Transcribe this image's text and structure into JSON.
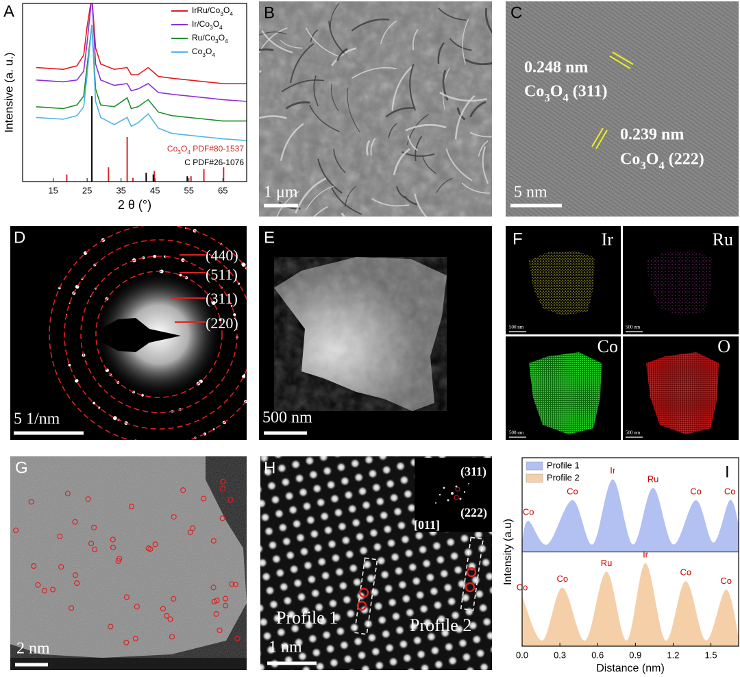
{
  "chart_data": [
    {
      "type": "line",
      "letter": "A",
      "xlabel": "2 θ (°)",
      "ylabel": "Intensive (a. u.)",
      "xlim": [
        6,
        72
      ],
      "ylim": [
        0,
        100
      ],
      "xticks": [
        15,
        25,
        35,
        45,
        55,
        65
      ],
      "legend": "upper right",
      "x": [
        10,
        18,
        22,
        24,
        25,
        26.4,
        27.5,
        29,
        33,
        36.8,
        38,
        40,
        43,
        46,
        50,
        55,
        60,
        65,
        72
      ],
      "series": [
        {
          "name": "IrRu/Co3O4",
          "color": "#e31a1c",
          "values": [
            64,
            63,
            65,
            71,
            87,
            104,
            75,
            66,
            63,
            64,
            60,
            60,
            64,
            59,
            58,
            57,
            56,
            55,
            55
          ]
        },
        {
          "name": "Ir/Co3O4",
          "color": "#8e2fd6",
          "values": [
            57,
            56,
            57,
            62,
            78,
            104,
            66,
            57,
            54,
            55,
            51,
            52,
            55,
            50,
            49,
            48,
            47,
            46,
            45
          ]
        },
        {
          "name": "Ru/Co3O4",
          "color": "#1e8f2a",
          "values": [
            42,
            41,
            43,
            48,
            65,
            88,
            52,
            43,
            42,
            47,
            41,
            42,
            46,
            39,
            37,
            36,
            35,
            34,
            34
          ]
        },
        {
          "name": "Co3O4",
          "color": "#4fb3e8",
          "values": [
            36,
            35,
            37,
            42,
            60,
            88,
            45,
            36,
            32,
            36,
            31,
            33,
            38,
            30,
            27,
            26,
            25,
            24,
            23
          ]
        }
      ],
      "references": [
        {
          "name": "Co3O4 PDF#80-1537",
          "color": "#d62728",
          "x": [
            19,
            31.3,
            36.8,
            38.5,
            44.8,
            55.6,
            59.4,
            65.2
          ],
          "values": [
            4,
            8,
            25,
            2,
            6,
            3,
            7,
            8
          ]
        },
        {
          "name": "C PDF#26-1076",
          "color": "#000000",
          "x": [
            26.4,
            42.4,
            44.5,
            54.5
          ],
          "values": [
            48,
            5,
            4,
            3
          ]
        }
      ]
    },
    {
      "type": "area",
      "letter": "I",
      "xlabel": "Distance (nm)",
      "ylabel": "Intensity (a.u)",
      "xlim": [
        0,
        1.72
      ],
      "ylim": [
        0,
        2
      ],
      "xticks": [
        {
          "value": 0,
          "label": "0.0"
        },
        0.3,
        0.6,
        0.9,
        1.2,
        1.5
      ],
      "legend": "upper left",
      "label_color": "#cc0000",
      "series": [
        {
          "name": "Profile 1",
          "color": "#b3c0f2",
          "x": [
            0,
            0.05,
            0.2,
            0.4,
            0.56,
            0.72,
            0.88,
            1.04,
            1.2,
            1.38,
            1.52,
            1.65,
            1.72
          ],
          "values": [
            1.12,
            1.33,
            1.08,
            1.55,
            1.08,
            1.77,
            1.08,
            1.68,
            1.08,
            1.55,
            1.1,
            1.55,
            1.3
          ],
          "peak_labels": [
            null,
            "Co",
            null,
            "Co",
            null,
            "Ir",
            null,
            "Ru",
            null,
            "Co",
            null,
            "Co",
            null
          ]
        },
        {
          "name": "Profile 2",
          "color": "#f5cfa8",
          "x": [
            0,
            0.16,
            0.32,
            0.5,
            0.67,
            0.83,
            0.98,
            1.14,
            1.3,
            1.46,
            1.62,
            1.72
          ],
          "values": [
            0.53,
            0.06,
            0.62,
            0.06,
            0.79,
            0.06,
            0.88,
            0.06,
            0.69,
            0.06,
            0.6,
            0.1
          ],
          "peak_labels": [
            "Co",
            null,
            "Co",
            null,
            "Ru",
            null,
            "Ir",
            null,
            "Co",
            null,
            "Co",
            null
          ]
        }
      ]
    }
  ],
  "images": [
    {
      "letter": "B",
      "scale_bar": "1 μm"
    },
    {
      "letter": "C",
      "scale_bar": "5 nm",
      "annotations": [
        "0.248 nm",
        "Co3O4 (311)",
        "0.239 nm",
        "Co3O4 (222)"
      ]
    },
    {
      "letter": "D",
      "scale_bar": "5 1/nm",
      "rings": [
        "(440)",
        "(511)",
        "(311)",
        "(220)"
      ]
    },
    {
      "letter": "E",
      "scale_bar": "500 nm"
    },
    {
      "letter": "F",
      "maps": [
        {
          "element": "Ir",
          "scale_bar": "500 nm"
        },
        {
          "element": "Ru",
          "scale_bar": "500 nm"
        },
        {
          "element": "Co",
          "scale_bar": "500 nm"
        },
        {
          "element": "O",
          "scale_bar": "500 nm"
        }
      ]
    },
    {
      "letter": "G",
      "scale_bar": "2 nm"
    },
    {
      "letter": "H",
      "scale_bar": "1 nm",
      "inset": [
        "(311)",
        "(222)",
        "[011]"
      ],
      "profiles": [
        "Profile 1",
        "Profile 2"
      ]
    }
  ]
}
